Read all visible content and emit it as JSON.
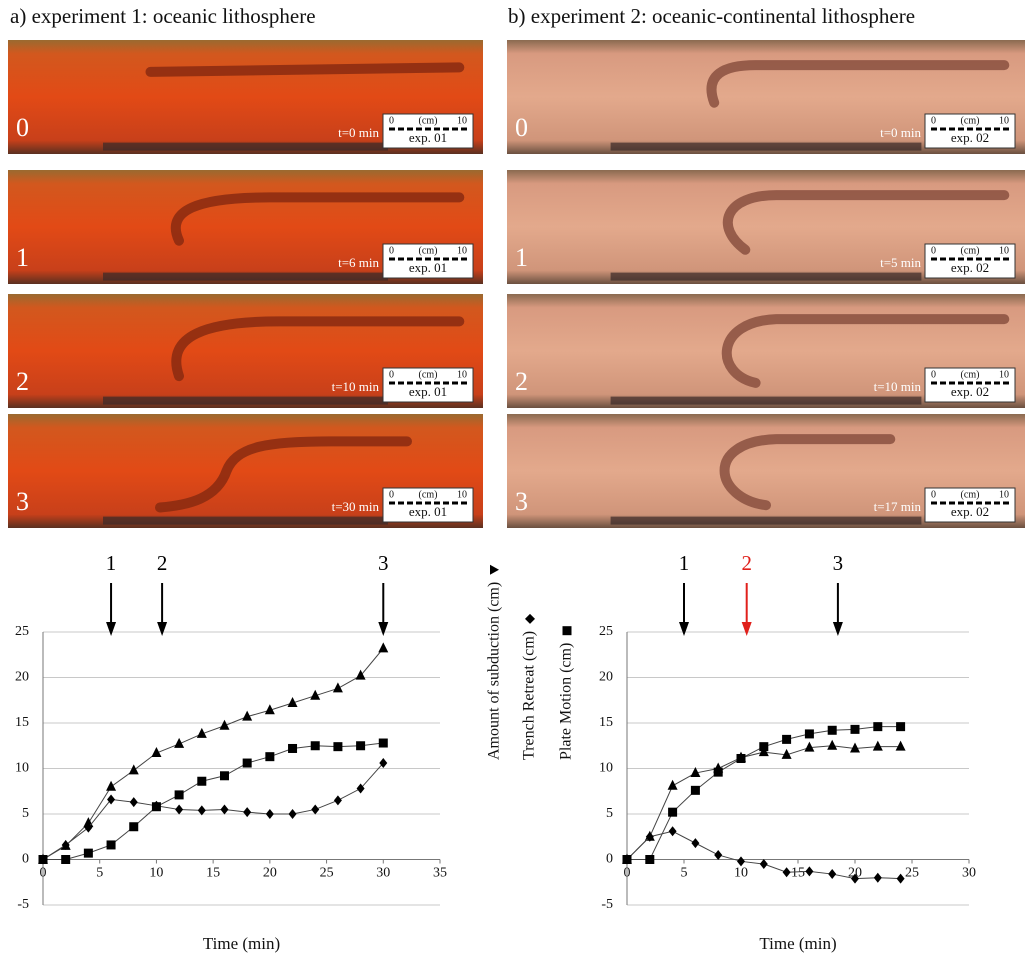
{
  "panels": [
    {
      "title": "a) experiment 1: oceanic lithosphere",
      "scale": {
        "min": "0",
        "unit": "(cm)",
        "max": "10"
      },
      "photos": [
        {
          "stage": "0",
          "time": "t=0 min",
          "exp": "exp. 01"
        },
        {
          "stage": "1",
          "time": "t=6 min",
          "exp": "exp. 01"
        },
        {
          "stage": "2",
          "time": "t=10 min",
          "exp": "exp. 01"
        },
        {
          "stage": "3",
          "time": "t=30 min",
          "exp": "exp. 01"
        }
      ]
    },
    {
      "title": "b) experiment 2: oceanic-continental lithosphere",
      "scale": {
        "min": "0",
        "unit": "(cm)",
        "max": "10"
      },
      "photos": [
        {
          "stage": "0",
          "time": "t=0 min",
          "exp": "exp. 02"
        },
        {
          "stage": "1",
          "time": "t=5 min",
          "exp": "exp. 02"
        },
        {
          "stage": "2",
          "time": "t=10 min",
          "exp": "exp. 02"
        },
        {
          "stage": "3",
          "time": "t=17 min",
          "exp": "exp. 02"
        }
      ]
    }
  ],
  "chart_data": [
    {
      "type": "line",
      "xlabel": "Time (min)",
      "xlim": [
        0,
        35
      ],
      "xticks": [
        0,
        5,
        10,
        15,
        20,
        25,
        30,
        35
      ],
      "ylim": [
        -5,
        25
      ],
      "yticks": [
        -5,
        0,
        5,
        10,
        15,
        20,
        25
      ],
      "grid": true,
      "legend": "right",
      "x": [
        0,
        2,
        4,
        6,
        8,
        10,
        12,
        14,
        16,
        18,
        20,
        22,
        24,
        26,
        28,
        30
      ],
      "series": [
        {
          "name": "Amount of subduction (cm)",
          "marker": "triangle",
          "color": "#000000",
          "values": [
            0,
            1.5,
            4,
            8,
            9.8,
            11.7,
            12.7,
            13.8,
            14.7,
            15.7,
            16.4,
            17.2,
            18,
            18.8,
            20.2,
            23.2
          ]
        },
        {
          "name": "Trench Retreat (cm)",
          "marker": "diamond",
          "color": "#000000",
          "values": [
            0,
            1.6,
            3.5,
            6.6,
            6.3,
            5.9,
            5.5,
            5.4,
            5.5,
            5.2,
            5,
            5,
            5.5,
            6.5,
            7.8,
            10.6
          ]
        },
        {
          "name": "Plate Motion (cm)",
          "marker": "square",
          "color": "#000000",
          "values": [
            0,
            0,
            0.7,
            1.6,
            3.6,
            5.8,
            7.1,
            8.6,
            9.2,
            10.6,
            11.3,
            12.2,
            12.5,
            12.4,
            12.5,
            12.8
          ]
        }
      ],
      "annotations": [
        {
          "label": "1",
          "x": 6,
          "color": "#000000"
        },
        {
          "label": "2",
          "x": 10.5,
          "color": "#000000"
        },
        {
          "label": "3",
          "x": 30,
          "color": "#000000"
        }
      ]
    },
    {
      "type": "line",
      "xlabel": "Time (min)",
      "xlim": [
        0,
        30
      ],
      "xticks": [
        0,
        5,
        10,
        15,
        20,
        25,
        30
      ],
      "ylim": [
        -5,
        25
      ],
      "yticks": [
        -5,
        0,
        5,
        10,
        15,
        20,
        25
      ],
      "grid": true,
      "x": [
        0,
        2,
        4,
        6,
        8,
        10,
        12,
        14,
        16,
        18,
        20,
        22,
        24
      ],
      "series": [
        {
          "name": "Amount of subduction (cm)",
          "marker": "triangle",
          "color": "#000000",
          "values": [
            0,
            2.5,
            8.1,
            9.5,
            10,
            11.2,
            11.8,
            11.5,
            12.3,
            12.5,
            12.2,
            12.4,
            12.4
          ]
        },
        {
          "name": "Trench Retreat (cm)",
          "marker": "diamond",
          "color": "#000000",
          "values": [
            0,
            2.5,
            3.1,
            1.8,
            0.5,
            -0.2,
            -0.5,
            -1.4,
            -1.3,
            -1.6,
            -2.1,
            -2,
            -2.1
          ]
        },
        {
          "name": "Plate Motion (cm)",
          "marker": "square",
          "color": "#000000",
          "values": [
            0,
            0,
            5.2,
            7.6,
            9.6,
            11.1,
            12.4,
            13.2,
            13.8,
            14.2,
            14.3,
            14.6,
            14.6
          ]
        }
      ],
      "annotations": [
        {
          "label": "1",
          "x": 5,
          "color": "#000000"
        },
        {
          "label": "2",
          "x": 10.5,
          "color": "#e0201b"
        },
        {
          "label": "3",
          "x": 18.5,
          "color": "#000000"
        }
      ]
    }
  ]
}
